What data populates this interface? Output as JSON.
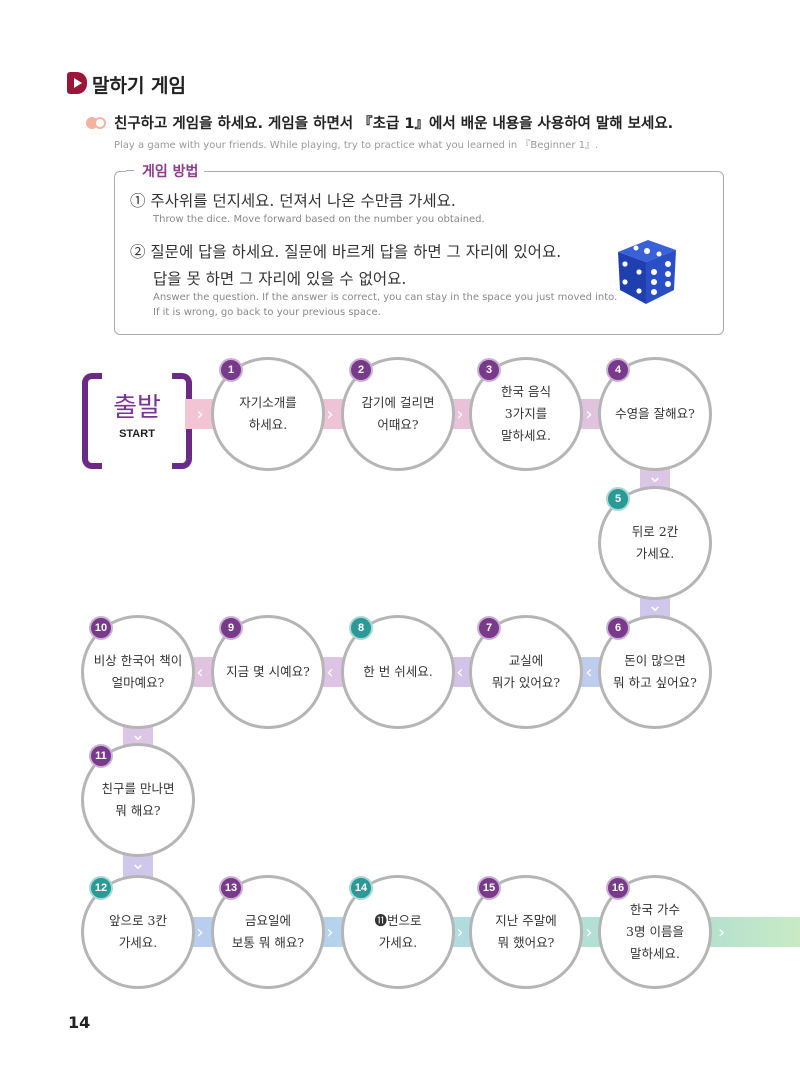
{
  "section_title": "말하기 게임",
  "instruction": {
    "ko": "친구하고 게임을 하세요. 게임을 하면서 『초급 1』에서 배운 내용을 사용하여 말해 보세요.",
    "en": "Play a game with your friends. While playing, try to practice what you learned in 『Beginner 1』."
  },
  "rules": {
    "title": "게임 방법",
    "items": [
      {
        "ko": [
          "① 주사위를 던지세요. 던져서 나온 수만큼 가세요."
        ],
        "en": [
          "Throw the dice. Move forward based on the number you obtained."
        ]
      },
      {
        "ko": [
          "② 질문에 답을 하세요. 질문에 바르게 답을 하면 그 자리에 있어요.",
          "답을 못 하면 그 자리에 있을 수 없어요."
        ],
        "en": [
          "Answer the question. If the answer is correct, you can stay in the space you just moved into.",
          "If it is wrong, go back to your previous space."
        ]
      }
    ],
    "image_icon": "blue-dice"
  },
  "start": {
    "ko": "출발",
    "en": "START"
  },
  "colors": {
    "purple_badge": "#7a3a8c",
    "teal_badge": "#2b9a96",
    "section": "#9b1538",
    "start": "#6b2a84"
  },
  "spaces": [
    {
      "num": "1",
      "badge": "purple",
      "lines": [
        "자기소개를",
        "하세요."
      ]
    },
    {
      "num": "2",
      "badge": "purple",
      "lines": [
        "감기에 걸리면",
        "어때요?"
      ]
    },
    {
      "num": "3",
      "badge": "purple",
      "lines": [
        "한국 음식",
        "3가지를",
        "말하세요."
      ]
    },
    {
      "num": "4",
      "badge": "purple",
      "lines": [
        "수영을 잘해요?"
      ]
    },
    {
      "num": "5",
      "badge": "teal",
      "lines": [
        "뒤로 2칸",
        "가세요."
      ]
    },
    {
      "num": "6",
      "badge": "purple",
      "lines": [
        "돈이 많으면",
        "뭐 하고 싶어요?"
      ]
    },
    {
      "num": "7",
      "badge": "purple",
      "lines": [
        "교실에",
        "뭐가 있어요?"
      ]
    },
    {
      "num": "8",
      "badge": "teal",
      "lines": [
        "한 번 쉬세요."
      ]
    },
    {
      "num": "9",
      "badge": "purple",
      "lines": [
        "지금 몇 시예요?"
      ]
    },
    {
      "num": "10",
      "badge": "purple",
      "lines": [
        "비상 한국어 책이",
        "얼마예요?"
      ]
    },
    {
      "num": "11",
      "badge": "purple",
      "lines": [
        "친구를 만나면",
        "뭐 해요?"
      ]
    },
    {
      "num": "12",
      "badge": "teal",
      "lines": [
        "앞으로 3칸",
        "가세요."
      ]
    },
    {
      "num": "13",
      "badge": "purple",
      "lines": [
        "금요일에",
        "보통 뭐 해요?"
      ]
    },
    {
      "num": "14",
      "badge": "teal",
      "lines": [
        "⓫번으로",
        "가세요."
      ]
    },
    {
      "num": "15",
      "badge": "purple",
      "lines": [
        "지난 주말에",
        "뭐 했어요?"
      ]
    },
    {
      "num": "16",
      "badge": "purple",
      "lines": [
        "한국 가수",
        "3명 이름을",
        "말하세요."
      ]
    }
  ],
  "page_number": "14"
}
